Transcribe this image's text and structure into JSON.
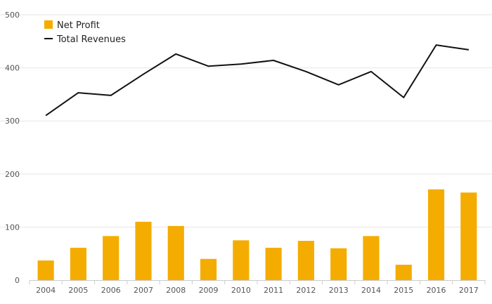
{
  "chart_data": {
    "type": "bar",
    "title": "",
    "xlabel": "",
    "ylabel": "",
    "categories": [
      "2004",
      "2005",
      "2006",
      "2007",
      "2008",
      "2009",
      "2010",
      "2011",
      "2012",
      "2013",
      "2014",
      "2015",
      "2016",
      "2017"
    ],
    "series": [
      {
        "name": "Net Profit",
        "type": "bar",
        "color": "#f5ac00",
        "values": [
          37,
          61,
          83,
          110,
          102,
          40,
          75,
          61,
          74,
          60,
          83,
          29,
          171,
          165
        ]
      },
      {
        "name": "Total Revenues",
        "type": "line",
        "color": "#111111",
        "values": [
          310,
          353,
          348,
          388,
          426,
          403,
          407,
          414,
          393,
          368,
          393,
          344,
          443,
          434
        ]
      }
    ],
    "ylim": [
      0,
      500
    ],
    "yticks": [
      0,
      100,
      200,
      300,
      400,
      500
    ],
    "grid": true,
    "legend": "top-left"
  }
}
